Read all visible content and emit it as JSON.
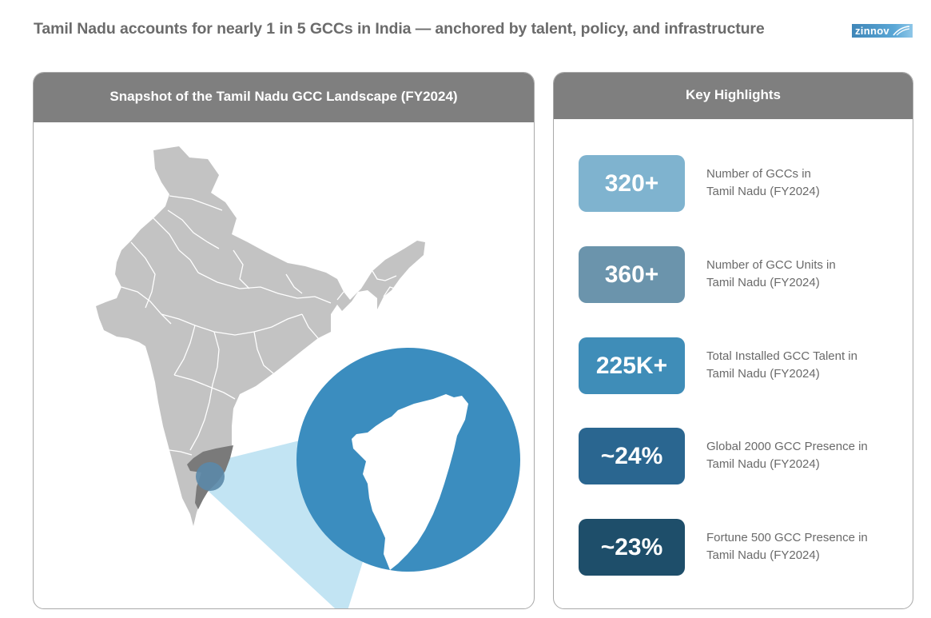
{
  "headline": "Tamil Nadu accounts for nearly 1 in 5 GCCs in India — anchored by talent, policy, and infrastructure",
  "logo": {
    "text": "zinnov"
  },
  "left_panel": {
    "title": "Snapshot of the Tamil Nadu GCC Landscape (FY2024)"
  },
  "right_panel": {
    "title": "Key Highlights",
    "highlights": [
      {
        "value": "320+",
        "line1": "Number of GCCs in",
        "line2": "Tamil Nadu (FY2024)",
        "color": "#7fb3cf"
      },
      {
        "value": "360+",
        "line1": "Number of GCC Units in",
        "line2": "Tamil Nadu (FY2024)",
        "color": "#6b94ac"
      },
      {
        "value": "225K+",
        "line1": "Total Installed GCC Talent in",
        "line2": "Tamil Nadu (FY2024)",
        "color": "#3f8db8"
      },
      {
        "value": "~24%",
        "line1": "Global 2000 GCC Presence in",
        "line2": "Tamil Nadu (FY2024)",
        "color": "#2a6690"
      },
      {
        "value": "~23%",
        "line1": "Fortune 500 GCC Presence in",
        "line2": "Tamil Nadu (FY2024)",
        "color": "#1e4e6a"
      }
    ]
  },
  "colors": {
    "header_bg": "#7f7f7f",
    "map_gray": "#c3c3c3",
    "tamil_nadu_highlight": "#7a7a7a",
    "zoom_circle": "#3b8dbf",
    "zoom_cone": "#bfe3f2"
  }
}
